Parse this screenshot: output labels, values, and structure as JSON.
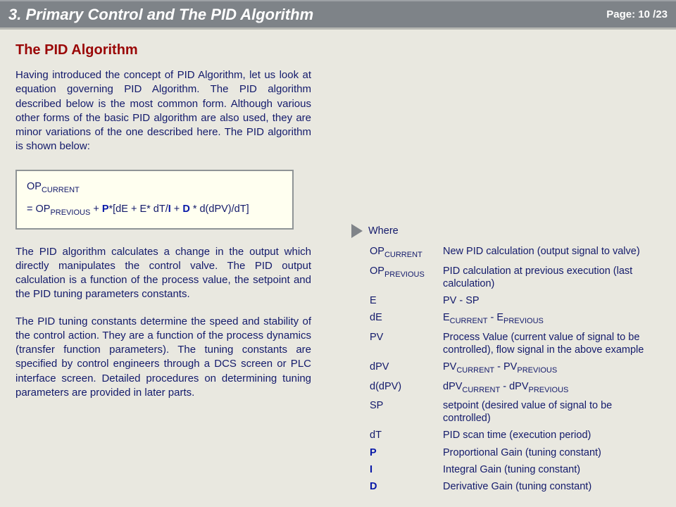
{
  "header": {
    "title": "3. Primary Control and The PID Algorithm",
    "page_label": "Page:",
    "page_current": "10",
    "page_sep": "/",
    "page_total": "23"
  },
  "section_title": "The PID Algorithm",
  "intro": "Having introduced the concept of PID Algorithm, let us look at equation governing PID Algorithm. The PID algorithm described below is the most common form. Although various other forms of the basic PID algorithm are also used, they are minor variations of the one described here.  The PID algorithm is shown below:",
  "formula": {
    "lhs_prefix": "OP",
    "lhs_sub": "CURRENT",
    "rhs_prefix": "= OP",
    "rhs_sub": "PREVIOUS",
    "plus": " + ",
    "P": "P",
    "seg1": "*[dE +  E* dT/",
    "I": "I",
    "seg2": " + ",
    "D": "D",
    "seg3": " * d(dPV)/dT]"
  },
  "para2": "The PID algorithm calculates a change in the output which directly manipulates the control valve.  The PID output calculation is a function of the process value, the setpoint and the PID tuning parameters constants.",
  "para3": "The PID tuning constants determine the speed and stability of the control action. They are a function of the process dynamics (transfer function parameters).   The tuning constants are specified by control engineers through a DCS screen or PLC interface screen.  Detailed procedures on determining tuning parameters are provided in later parts.",
  "where_label": "Where",
  "defs": {
    "t0a": "OP",
    "t0b": "CURRENT",
    "d0": "New PID calculation  (output signal to valve)",
    "t1a": "OP",
    "t1b": "PREVIOUS",
    "d1": "PID calculation at previous execution (last calculation)",
    "t2": "E",
    "d2": "PV - SP",
    "t3": "dE",
    "d3a": "E",
    "d3b": "CURRENT",
    "d3c": "  - E",
    "d3d": "PREVIOUS",
    "t4": "PV",
    "d4": "Process Value (current value of signal to be controlled), flow signal in the above example",
    "t5": "dPV",
    "d5a": "PV",
    "d5b": "CURRENT",
    "d5c": " - PV",
    "d5d": "PREVIOUS",
    "t6": "d(dPV)",
    "d6a": "dPV",
    "d6b": "CURRENT",
    "d6c": " - dPV",
    "d6d": "PREVIOUS",
    "t7": "SP",
    "d7": "setpoint (desired value of signal to be controlled)",
    "t8": "dT",
    "d8": "PID scan time (execution period)",
    "t9": "P",
    "d9": "Proportional Gain (tuning constant)",
    "t10": "I",
    "d10": "Integral Gain (tuning constant)",
    "t11": "D",
    "d11": "Derivative Gain (tuning constant)"
  }
}
